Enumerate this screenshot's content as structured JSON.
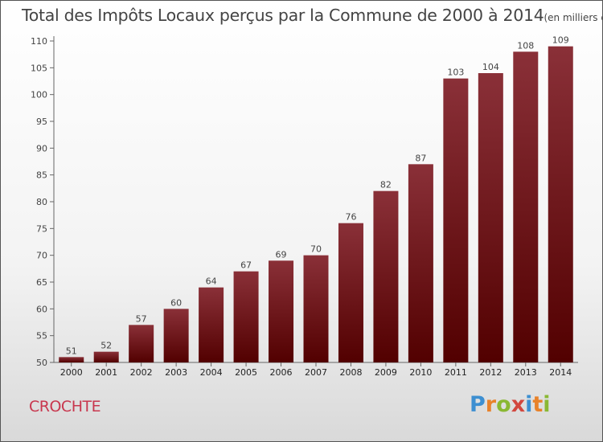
{
  "title": "Total des Impôts Locaux perçus par la Commune de 2000 à 2014",
  "unit": "(en milliers d'€)",
  "commune": "CROCHTE",
  "logo": {
    "letters": [
      "P",
      "r",
      "o",
      "x",
      "i",
      "t",
      "i"
    ],
    "colors": [
      "#3d8fd1",
      "#e8822a",
      "#8ab833",
      "#d2473e",
      "#3d8fd1",
      "#e8822a",
      "#8ab833"
    ]
  },
  "colors": {
    "bar_top": "#8a3038",
    "bar_bottom": "#520000",
    "axis": "#666666",
    "text": "#444444"
  },
  "chart_data": {
    "type": "bar",
    "title": "Total des Impôts Locaux perçus par la Commune de 2000 à 2014",
    "categories": [
      "2000",
      "2001",
      "2002",
      "2003",
      "2004",
      "2005",
      "2006",
      "2007",
      "2008",
      "2009",
      "2010",
      "2011",
      "2012",
      "2013",
      "2014"
    ],
    "values": [
      51,
      52,
      57,
      60,
      64,
      67,
      69,
      70,
      76,
      82,
      87,
      103,
      104,
      108,
      109
    ],
    "ylim": [
      50,
      110
    ],
    "yticks": [
      50,
      55,
      60,
      65,
      70,
      75,
      80,
      85,
      90,
      95,
      100,
      105,
      110
    ],
    "xlabel": "",
    "ylabel": ""
  }
}
